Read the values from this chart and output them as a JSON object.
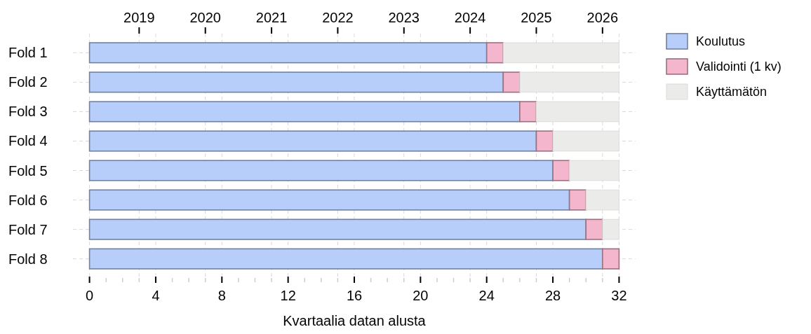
{
  "chart_data": {
    "type": "bar",
    "orientation": "horizontal",
    "stacked": true,
    "categories": [
      "Fold 1",
      "Fold 2",
      "Fold 3",
      "Fold 4",
      "Fold 5",
      "Fold 6",
      "Fold 7",
      "Fold 8"
    ],
    "series": [
      {
        "name": "Koulutus",
        "color": "#b7cdfa",
        "values": [
          24,
          25,
          26,
          27,
          28,
          29,
          30,
          31
        ]
      },
      {
        "name": "Validointi (1 kv)",
        "color": "#f4b6cc",
        "values": [
          1,
          1,
          1,
          1,
          1,
          1,
          1,
          1
        ]
      },
      {
        "name": "Käyttämätön",
        "color": "#ebebea",
        "values": [
          7,
          6,
          5,
          4,
          3,
          2,
          1,
          0
        ]
      }
    ],
    "xlim": [
      -1,
      33
    ],
    "xticks": [
      0,
      {
        "value": 1,
        "label": null
      },
      {
        "value": 2,
        "label": null
      },
      {
        "value": 3,
        "label": null
      },
      4,
      {
        "value": 5,
        "label": null
      },
      {
        "value": 6,
        "label": null
      },
      {
        "value": 7,
        "label": null
      },
      8,
      {
        "value": 9,
        "label": null
      },
      {
        "value": 10,
        "label": null
      },
      {
        "value": 11,
        "label": null
      },
      12,
      {
        "value": 13,
        "label": null
      },
      {
        "value": 14,
        "label": null
      },
      {
        "value": 15,
        "label": null
      },
      16,
      {
        "value": 17,
        "label": null
      },
      {
        "value": 18,
        "label": null
      },
      {
        "value": 19,
        "label": null
      },
      20,
      {
        "value": 21,
        "label": null
      },
      {
        "value": 22,
        "label": null
      },
      {
        "value": 23,
        "label": null
      },
      24,
      {
        "value": 25,
        "label": null
      },
      {
        "value": 26,
        "label": null
      },
      {
        "value": 27,
        "label": null
      },
      28,
      {
        "value": 29,
        "label": null
      },
      {
        "value": 30,
        "label": null
      },
      {
        "value": 31,
        "label": null
      },
      32
    ],
    "x2lim": [
      2018,
      2026.5
    ],
    "x2ticks": [
      2019,
      2020,
      2021,
      2022,
      2023,
      2024,
      2025,
      2026
    ],
    "xlabel": "Kvartaalia datan alusta",
    "grid": true,
    "legend": "right"
  }
}
